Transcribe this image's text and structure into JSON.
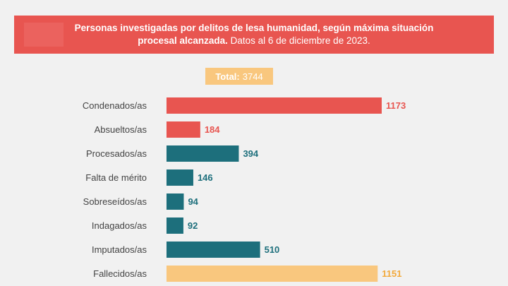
{
  "header": {
    "title_bold": "Personas investigadas por delitos de lesa humanidad, según máxima situación procesal alcanzada.",
    "title_line1": "Personas investigadas por delitos de lesa humanidad, según máxima situación",
    "title_line2_bold": "procesal alcanzada.",
    "title_line2_rest": "Datos al 6 de diciembre de 2023."
  },
  "total": {
    "label": "Total:",
    "value": "3744"
  },
  "colors": {
    "red": "#e85550",
    "teal": "#1d6f7c",
    "yellow": "#f9c77e",
    "yellow_text": "#f2a93b"
  },
  "chart_data": {
    "type": "bar",
    "orientation": "horizontal",
    "categories": [
      "Condenados/as",
      "Absueltos/as",
      "Procesados/as",
      "Falta de mérito",
      "Sobreseídos/as",
      "Indagados/as",
      "Imputados/as",
      "Fallecidos/as"
    ],
    "values": [
      1173,
      184,
      394,
      146,
      94,
      92,
      510,
      1151
    ],
    "bar_colors": [
      "red",
      "red",
      "teal",
      "teal",
      "teal",
      "teal",
      "teal",
      "yellow"
    ],
    "xlim": [
      0,
      1173
    ],
    "grid": false,
    "legend": "none"
  }
}
